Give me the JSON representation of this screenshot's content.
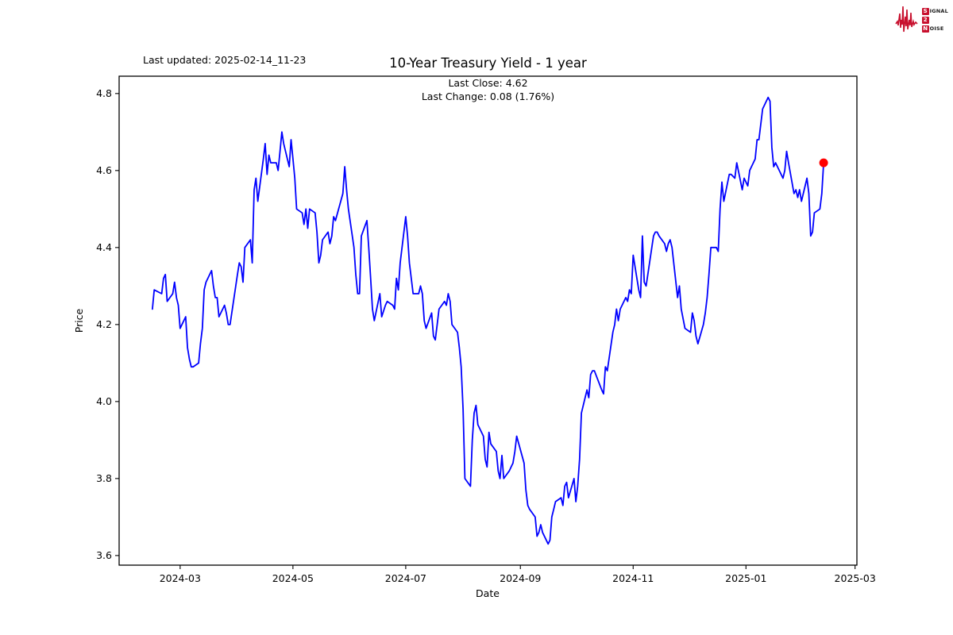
{
  "header": {
    "last_updated": "Last updated: 2025-02-14_11-23",
    "title": "10-Year Treasury Yield - 1 year",
    "subtitle_close": "Last Close: 4.62",
    "subtitle_change": "Last Change: 0.08 (1.76%)"
  },
  "logo": {
    "line1_badge": "S",
    "line1_rest": "IGNAL",
    "line2_badge": "2",
    "line3_badge": "N",
    "line3_rest": "OISE",
    "color": "#c8102e"
  },
  "chart_data": {
    "type": "line",
    "title": "10-Year Treasury Yield - 1 year",
    "xlabel": "Date",
    "ylabel": "Price",
    "legend": "none",
    "grid": false,
    "line_color": "#0000ff",
    "marker_color": "#ff0000",
    "last_close": 4.62,
    "last_change": 0.08,
    "last_change_pct": "1.76%",
    "ylim": [
      3.575,
      4.845
    ],
    "xlim": [
      "2024-01-28",
      "2025-03-02"
    ],
    "yticks": [
      {
        "v": 4.8,
        "label": "4.8"
      },
      {
        "v": 4.6,
        "label": "4.6"
      },
      {
        "v": 4.4,
        "label": "4.4"
      },
      {
        "v": 4.2,
        "label": "4.2"
      },
      {
        "v": 4.0,
        "label": "4.0"
      },
      {
        "v": 3.8,
        "label": "3.8"
      },
      {
        "v": 3.6,
        "label": "3.6"
      }
    ],
    "xticks": [
      {
        "d": "2024-03-01",
        "label": "2024-03"
      },
      {
        "d": "2024-05-01",
        "label": "2024-05"
      },
      {
        "d": "2024-07-01",
        "label": "2024-07"
      },
      {
        "d": "2024-09-01",
        "label": "2024-09"
      },
      {
        "d": "2024-11-01",
        "label": "2024-11"
      },
      {
        "d": "2025-01-01",
        "label": "2025-01"
      },
      {
        "d": "2025-03-01",
        "label": "2025-03"
      }
    ],
    "dates": [
      "2024-02-15",
      "2024-02-16",
      "2024-02-20",
      "2024-02-21",
      "2024-02-22",
      "2024-02-23",
      "2024-02-26",
      "2024-02-27",
      "2024-02-28",
      "2024-02-29",
      "2024-03-01",
      "2024-03-04",
      "2024-03-05",
      "2024-03-06",
      "2024-03-07",
      "2024-03-08",
      "2024-03-11",
      "2024-03-12",
      "2024-03-13",
      "2024-03-14",
      "2024-03-15",
      "2024-03-18",
      "2024-03-19",
      "2024-03-20",
      "2024-03-21",
      "2024-03-22",
      "2024-03-25",
      "2024-03-26",
      "2024-03-27",
      "2024-03-28",
      "2024-04-01",
      "2024-04-02",
      "2024-04-03",
      "2024-04-04",
      "2024-04-05",
      "2024-04-08",
      "2024-04-09",
      "2024-04-10",
      "2024-04-11",
      "2024-04-12",
      "2024-04-15",
      "2024-04-16",
      "2024-04-17",
      "2024-04-18",
      "2024-04-19",
      "2024-04-22",
      "2024-04-23",
      "2024-04-24",
      "2024-04-25",
      "2024-04-26",
      "2024-04-29",
      "2024-04-30",
      "2024-05-01",
      "2024-05-02",
      "2024-05-03",
      "2024-05-06",
      "2024-05-07",
      "2024-05-08",
      "2024-05-09",
      "2024-05-10",
      "2024-05-13",
      "2024-05-14",
      "2024-05-15",
      "2024-05-16",
      "2024-05-17",
      "2024-05-20",
      "2024-05-21",
      "2024-05-22",
      "2024-05-23",
      "2024-05-24",
      "2024-05-28",
      "2024-05-29",
      "2024-05-30",
      "2024-05-31",
      "2024-06-03",
      "2024-06-04",
      "2024-06-05",
      "2024-06-06",
      "2024-06-07",
      "2024-06-10",
      "2024-06-11",
      "2024-06-12",
      "2024-06-13",
      "2024-06-14",
      "2024-06-17",
      "2024-06-18",
      "2024-06-20",
      "2024-06-21",
      "2024-06-24",
      "2024-06-25",
      "2024-06-26",
      "2024-06-27",
      "2024-06-28",
      "2024-07-01",
      "2024-07-02",
      "2024-07-03",
      "2024-07-05",
      "2024-07-08",
      "2024-07-09",
      "2024-07-10",
      "2024-07-11",
      "2024-07-12",
      "2024-07-15",
      "2024-07-16",
      "2024-07-17",
      "2024-07-18",
      "2024-07-19",
      "2024-07-22",
      "2024-07-23",
      "2024-07-24",
      "2024-07-25",
      "2024-07-26",
      "2024-07-29",
      "2024-07-30",
      "2024-07-31",
      "2024-08-01",
      "2024-08-02",
      "2024-08-05",
      "2024-08-06",
      "2024-08-07",
      "2024-08-08",
      "2024-08-09",
      "2024-08-12",
      "2024-08-13",
      "2024-08-14",
      "2024-08-15",
      "2024-08-16",
      "2024-08-19",
      "2024-08-20",
      "2024-08-21",
      "2024-08-22",
      "2024-08-23",
      "2024-08-26",
      "2024-08-27",
      "2024-08-28",
      "2024-08-29",
      "2024-08-30",
      "2024-09-03",
      "2024-09-04",
      "2024-09-05",
      "2024-09-06",
      "2024-09-09",
      "2024-09-10",
      "2024-09-11",
      "2024-09-12",
      "2024-09-13",
      "2024-09-16",
      "2024-09-17",
      "2024-09-18",
      "2024-09-19",
      "2024-09-20",
      "2024-09-23",
      "2024-09-24",
      "2024-09-25",
      "2024-09-26",
      "2024-09-27",
      "2024-09-30",
      "2024-10-01",
      "2024-10-02",
      "2024-10-03",
      "2024-10-04",
      "2024-10-07",
      "2024-10-08",
      "2024-10-09",
      "2024-10-10",
      "2024-10-11",
      "2024-10-15",
      "2024-10-16",
      "2024-10-17",
      "2024-10-18",
      "2024-10-21",
      "2024-10-22",
      "2024-10-23",
      "2024-10-24",
      "2024-10-25",
      "2024-10-28",
      "2024-10-29",
      "2024-10-30",
      "2024-10-31",
      "2024-11-01",
      "2024-11-04",
      "2024-11-05",
      "2024-11-06",
      "2024-11-07",
      "2024-11-08",
      "2024-11-12",
      "2024-11-13",
      "2024-11-14",
      "2024-11-15",
      "2024-11-18",
      "2024-11-19",
      "2024-11-20",
      "2024-11-21",
      "2024-11-22",
      "2024-11-25",
      "2024-11-26",
      "2024-11-27",
      "2024-11-29",
      "2024-12-02",
      "2024-12-03",
      "2024-12-04",
      "2024-12-05",
      "2024-12-06",
      "2024-12-09",
      "2024-12-10",
      "2024-12-11",
      "2024-12-12",
      "2024-12-13",
      "2024-12-16",
      "2024-12-17",
      "2024-12-18",
      "2024-12-19",
      "2024-12-20",
      "2024-12-23",
      "2024-12-24",
      "2024-12-26",
      "2024-12-27",
      "2024-12-30",
      "2024-12-31",
      "2025-01-02",
      "2025-01-03",
      "2025-01-06",
      "2025-01-07",
      "2025-01-08",
      "2025-01-10",
      "2025-01-13",
      "2025-01-14",
      "2025-01-15",
      "2025-01-16",
      "2025-01-17",
      "2025-01-21",
      "2025-01-22",
      "2025-01-23",
      "2025-01-24",
      "2025-01-27",
      "2025-01-28",
      "2025-01-29",
      "2025-01-30",
      "2025-01-31",
      "2025-02-03",
      "2025-02-04",
      "2025-02-05",
      "2025-02-06",
      "2025-02-07",
      "2025-02-10",
      "2025-02-11",
      "2025-02-12"
    ],
    "values": [
      4.24,
      4.29,
      4.28,
      4.32,
      4.33,
      4.26,
      4.28,
      4.31,
      4.27,
      4.25,
      4.19,
      4.22,
      4.14,
      4.11,
      4.09,
      4.09,
      4.1,
      4.15,
      4.19,
      4.29,
      4.31,
      4.34,
      4.3,
      4.27,
      4.27,
      4.22,
      4.25,
      4.23,
      4.2,
      4.2,
      4.33,
      4.36,
      4.35,
      4.31,
      4.4,
      4.42,
      4.36,
      4.55,
      4.58,
      4.52,
      4.63,
      4.67,
      4.59,
      4.64,
      4.62,
      4.62,
      4.6,
      4.65,
      4.7,
      4.67,
      4.61,
      4.68,
      4.63,
      4.58,
      4.5,
      4.49,
      4.46,
      4.5,
      4.45,
      4.5,
      4.49,
      4.44,
      4.36,
      4.38,
      4.42,
      4.44,
      4.41,
      4.43,
      4.48,
      4.47,
      4.54,
      4.61,
      4.55,
      4.5,
      4.4,
      4.33,
      4.28,
      4.28,
      4.43,
      4.47,
      4.4,
      4.32,
      4.24,
      4.21,
      4.28,
      4.22,
      4.25,
      4.26,
      4.25,
      4.24,
      4.32,
      4.29,
      4.36,
      4.48,
      4.43,
      4.36,
      4.28,
      4.28,
      4.3,
      4.28,
      4.21,
      4.19,
      4.23,
      4.17,
      4.16,
      4.2,
      4.24,
      4.26,
      4.25,
      4.28,
      4.26,
      4.2,
      4.18,
      4.14,
      4.09,
      3.98,
      3.8,
      3.78,
      3.9,
      3.97,
      3.99,
      3.94,
      3.91,
      3.85,
      3.83,
      3.92,
      3.89,
      3.87,
      3.82,
      3.8,
      3.86,
      3.8,
      3.82,
      3.83,
      3.84,
      3.87,
      3.91,
      3.84,
      3.77,
      3.73,
      3.72,
      3.7,
      3.65,
      3.66,
      3.68,
      3.66,
      3.63,
      3.64,
      3.7,
      3.72,
      3.74,
      3.75,
      3.73,
      3.78,
      3.79,
      3.75,
      3.8,
      3.74,
      3.78,
      3.85,
      3.97,
      4.03,
      4.01,
      4.07,
      4.08,
      4.08,
      4.03,
      4.02,
      4.09,
      4.08,
      4.18,
      4.2,
      4.24,
      4.21,
      4.24,
      4.27,
      4.26,
      4.29,
      4.28,
      4.38,
      4.29,
      4.27,
      4.43,
      4.31,
      4.3,
      4.43,
      4.44,
      4.44,
      4.43,
      4.41,
      4.39,
      4.41,
      4.42,
      4.4,
      4.27,
      4.3,
      4.24,
      4.19,
      4.18,
      4.23,
      4.21,
      4.17,
      4.15,
      4.2,
      4.23,
      4.27,
      4.33,
      4.4,
      4.4,
      4.39,
      4.5,
      4.57,
      4.52,
      4.59,
      4.59,
      4.58,
      4.62,
      4.55,
      4.58,
      4.56,
      4.6,
      4.63,
      4.68,
      4.68,
      4.76,
      4.79,
      4.78,
      4.66,
      4.61,
      4.62,
      4.58,
      4.6,
      4.65,
      4.62,
      4.54,
      4.55,
      4.53,
      4.55,
      4.52,
      4.58,
      4.54,
      4.43,
      4.44,
      4.49,
      4.5,
      4.54,
      4.62
    ]
  }
}
